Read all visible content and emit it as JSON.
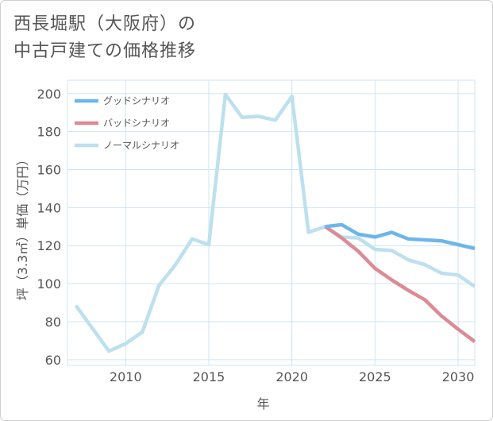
{
  "title": {
    "line1": "西長堀駅（大阪府）の",
    "line2": "中古戸建ての価格推移"
  },
  "chart_data": {
    "type": "line",
    "title": "西長堀駅（大阪府）の中古戸建ての価格推移",
    "xlabel": "年",
    "ylabel": "坪（3.3㎡）単価（万円）",
    "xlim": [
      2006.5,
      2031
    ],
    "ylim": [
      57,
      207
    ],
    "x_ticks": [
      2010,
      2015,
      2020,
      2025,
      2030
    ],
    "y_ticks": [
      60,
      80,
      100,
      120,
      140,
      160,
      180,
      200
    ],
    "grid": true,
    "legend_position": "top-left",
    "series": [
      {
        "name": "グッドシナリオ",
        "color": "#6db6ea",
        "x": [
          2022,
          2023,
          2024,
          2025,
          2026,
          2027,
          2028,
          2029,
          2030,
          2031
        ],
        "values": [
          130,
          131,
          126,
          124.5,
          127,
          123.5,
          123,
          122.5,
          120.5,
          118.5
        ]
      },
      {
        "name": "バッドシナリオ",
        "color": "#dc8b95",
        "x": [
          2022,
          2023,
          2024,
          2025,
          2026,
          2027,
          2028,
          2029,
          2030,
          2031
        ],
        "values": [
          130,
          124,
          117,
          108,
          102,
          96.5,
          91.5,
          83,
          76,
          69.5
        ]
      },
      {
        "name": "ノーマルシナリオ",
        "color": "#bde0ee",
        "x": [
          2007,
          2008,
          2009,
          2010,
          2011,
          2012,
          2013,
          2014,
          2015,
          2016,
          2017,
          2018,
          2019,
          2020,
          2021,
          2022,
          2023,
          2024,
          2025,
          2026,
          2027,
          2028,
          2029,
          2030,
          2031
        ],
        "values": [
          88.5,
          76.5,
          64.5,
          68.5,
          74.5,
          99,
          110,
          123.5,
          120.5,
          199.5,
          187.5,
          188,
          186,
          198.5,
          127,
          130,
          124.5,
          124,
          118,
          117.5,
          112.5,
          110,
          105.5,
          104.5,
          98.5
        ]
      }
    ]
  }
}
